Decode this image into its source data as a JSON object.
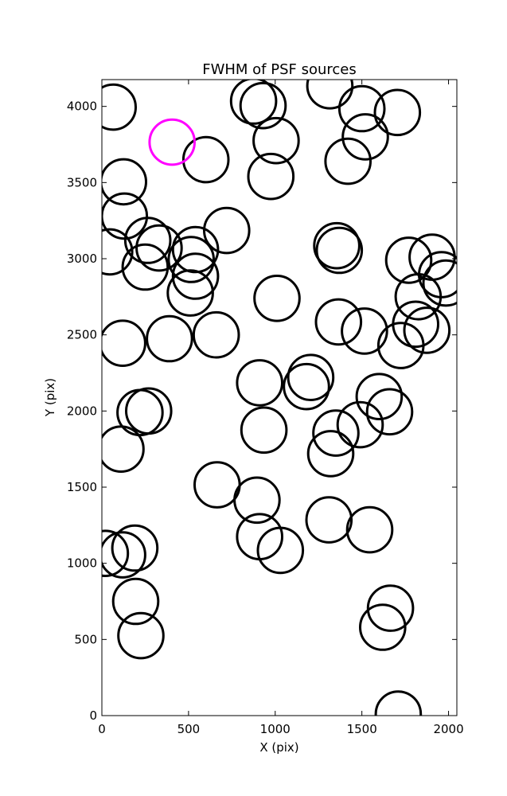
{
  "chart_data": {
    "type": "scatter",
    "title": "FWHM of PSF sources",
    "xlabel": "X (pix)",
    "ylabel": "Y (pix)",
    "xlim": [
      0,
      2048
    ],
    "ylim": [
      0,
      4176
    ],
    "xticks": [
      0,
      500,
      1000,
      1500,
      2000
    ],
    "yticks": [
      0,
      500,
      1000,
      1500,
      2000,
      2500,
      3000,
      3500,
      4000
    ],
    "grid": false,
    "marker": "open-circle",
    "marker_radius_pix": 130,
    "colors": {
      "normal": "#000000",
      "highlight": "#ff00ff"
    },
    "highlight": {
      "x": 405,
      "y": 3765
    },
    "sources": [
      {
        "x": 65,
        "y": 3995
      },
      {
        "x": 875,
        "y": 4035
      },
      {
        "x": 930,
        "y": 4005
      },
      {
        "x": 1315,
        "y": 4135
      },
      {
        "x": 1500,
        "y": 3985
      },
      {
        "x": 1705,
        "y": 3960
      },
      {
        "x": 1005,
        "y": 3775
      },
      {
        "x": 1520,
        "y": 3800
      },
      {
        "x": 600,
        "y": 3650
      },
      {
        "x": 1420,
        "y": 3640
      },
      {
        "x": 975,
        "y": 3540
      },
      {
        "x": 125,
        "y": 3505
      },
      {
        "x": 130,
        "y": 3280
      },
      {
        "x": 720,
        "y": 3185
      },
      {
        "x": 265,
        "y": 3120
      },
      {
        "x": 330,
        "y": 3070
      },
      {
        "x": 1355,
        "y": 3085
      },
      {
        "x": 1370,
        "y": 3055
      },
      {
        "x": 1770,
        "y": 2990
      },
      {
        "x": 45,
        "y": 3045
      },
      {
        "x": 540,
        "y": 3060
      },
      {
        "x": 515,
        "y": 2995
      },
      {
        "x": 1905,
        "y": 3010
      },
      {
        "x": 250,
        "y": 2945
      },
      {
        "x": 1960,
        "y": 2895
      },
      {
        "x": 540,
        "y": 2885
      },
      {
        "x": 1985,
        "y": 2840
      },
      {
        "x": 510,
        "y": 2775
      },
      {
        "x": 1825,
        "y": 2750
      },
      {
        "x": 1010,
        "y": 2740
      },
      {
        "x": 1365,
        "y": 2585
      },
      {
        "x": 1515,
        "y": 2525
      },
      {
        "x": 1810,
        "y": 2570
      },
      {
        "x": 1875,
        "y": 2530
      },
      {
        "x": 660,
        "y": 2500
      },
      {
        "x": 390,
        "y": 2475
      },
      {
        "x": 120,
        "y": 2445
      },
      {
        "x": 1725,
        "y": 2430
      },
      {
        "x": 1205,
        "y": 2220
      },
      {
        "x": 1180,
        "y": 2160
      },
      {
        "x": 910,
        "y": 2185
      },
      {
        "x": 1600,
        "y": 2095
      },
      {
        "x": 1660,
        "y": 1995
      },
      {
        "x": 270,
        "y": 2000
      },
      {
        "x": 220,
        "y": 1990
      },
      {
        "x": 1490,
        "y": 1910
      },
      {
        "x": 1350,
        "y": 1855
      },
      {
        "x": 935,
        "y": 1875
      },
      {
        "x": 1320,
        "y": 1720
      },
      {
        "x": 110,
        "y": 1750
      },
      {
        "x": 665,
        "y": 1515
      },
      {
        "x": 895,
        "y": 1415
      },
      {
        "x": 1310,
        "y": 1285
      },
      {
        "x": 1545,
        "y": 1220
      },
      {
        "x": 910,
        "y": 1175
      },
      {
        "x": 1030,
        "y": 1085
      },
      {
        "x": 190,
        "y": 1100
      },
      {
        "x": 20,
        "y": 1065
      },
      {
        "x": 120,
        "y": 1055
      },
      {
        "x": 195,
        "y": 750
      },
      {
        "x": 1665,
        "y": 705
      },
      {
        "x": 1620,
        "y": 580
      },
      {
        "x": 225,
        "y": 525
      },
      {
        "x": 1710,
        "y": 10
      }
    ]
  }
}
